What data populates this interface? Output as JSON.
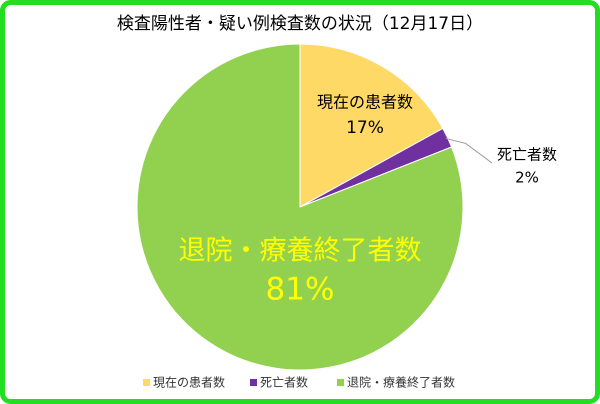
{
  "chart_data": {
    "type": "pie",
    "title": "検査陽性者・疑い例検査数の状況（12月17日）",
    "categories": [
      "現在の患者数",
      "死亡者数",
      "退院・療養終了者数"
    ],
    "values": [
      17,
      2,
      81
    ],
    "value_labels": [
      "17%",
      "2%",
      "81%"
    ],
    "colors": [
      "#ffd966",
      "#7030a0",
      "#92d050"
    ],
    "legend": "bottom"
  }
}
